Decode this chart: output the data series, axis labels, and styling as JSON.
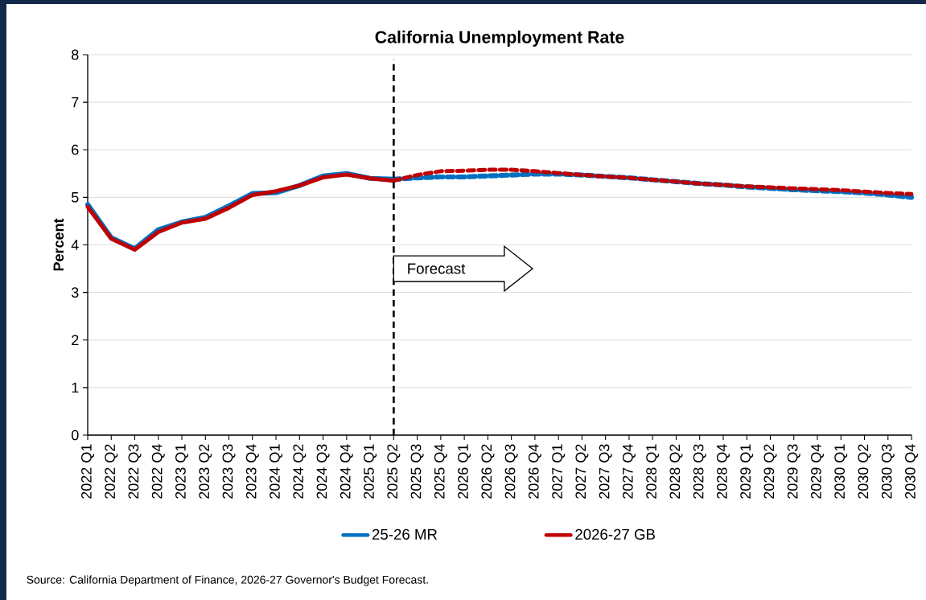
{
  "chart_data": {
    "type": "line",
    "title": "California Unemployment Rate",
    "ylabel": "Percent",
    "categories": [
      "2022 Q1",
      "2022 Q2",
      "2022 Q3",
      "2022 Q4",
      "2023 Q1",
      "2023 Q2",
      "2023 Q3",
      "2023 Q4",
      "2024 Q1",
      "2024 Q2",
      "2024 Q3",
      "2024 Q4",
      "2025 Q1",
      "2025 Q2",
      "2025 Q3",
      "2025 Q4",
      "2026 Q1",
      "2026 Q2",
      "2026 Q3",
      "2026 Q4",
      "2027 Q1",
      "2027 Q2",
      "2027 Q3",
      "2027 Q4",
      "2028 Q1",
      "2028 Q2",
      "2028 Q3",
      "2028 Q4",
      "2029 Q1",
      "2029 Q2",
      "2029 Q3",
      "2029 Q4",
      "2030 Q1",
      "2030 Q2",
      "2030 Q3",
      "2030 Q4"
    ],
    "series": [
      {
        "name": "25-26 MR",
        "color": "#0070c0",
        "line_style": "solid",
        "values": [
          4.85,
          4.15,
          3.92,
          4.32,
          4.48,
          4.58,
          4.82,
          5.08,
          5.1,
          5.25,
          5.45,
          5.5,
          5.4,
          5.38,
          null,
          null,
          null,
          null,
          null,
          null,
          null,
          null,
          null,
          null,
          null,
          null,
          null,
          null,
          null,
          null,
          null,
          null,
          null,
          null,
          null,
          null
        ]
      },
      {
        "color": "#0070c0",
        "line_style": "dashed",
        "values": [
          null,
          null,
          null,
          null,
          null,
          null,
          null,
          null,
          null,
          null,
          null,
          null,
          null,
          5.38,
          5.41,
          5.43,
          5.43,
          5.45,
          5.47,
          5.49,
          5.49,
          5.47,
          5.44,
          5.41,
          5.37,
          5.33,
          5.29,
          5.26,
          5.22,
          5.19,
          5.16,
          5.14,
          5.12,
          5.09,
          5.05,
          5.0
        ]
      },
      {
        "name": "2026-27 GB",
        "color": "#c00000",
        "line_style": "solid",
        "values": [
          4.8,
          4.13,
          3.9,
          4.27,
          4.47,
          4.55,
          4.78,
          5.05,
          5.13,
          5.25,
          5.42,
          5.48,
          5.4,
          5.35,
          null,
          null,
          null,
          null,
          null,
          null,
          null,
          null,
          null,
          null,
          null,
          null,
          null,
          null,
          null,
          null,
          null,
          null,
          null,
          null,
          null,
          null
        ]
      },
      {
        "color": "#c00000",
        "line_style": "dashed",
        "values": [
          null,
          null,
          null,
          null,
          null,
          null,
          null,
          null,
          null,
          null,
          null,
          null,
          null,
          5.35,
          5.47,
          5.55,
          5.56,
          5.58,
          5.58,
          5.55,
          5.51,
          5.47,
          5.44,
          5.41,
          5.37,
          5.33,
          5.29,
          5.26,
          5.23,
          5.21,
          5.19,
          5.17,
          5.15,
          5.12,
          5.09,
          5.07
        ]
      }
    ],
    "ylim": [
      0,
      8
    ],
    "yticks": [
      0,
      1,
      2,
      3,
      4,
      5,
      6,
      7,
      8
    ],
    "grid": "y",
    "legend": "bottom",
    "ref_lines": [
      {
        "axis": "x",
        "value": "2025 Q2",
        "color": "#000000",
        "line_style": "dashed"
      }
    ],
    "annotations": [
      {
        "text": "Forecast",
        "x": "2025 Q2",
        "y": 3.5
      },
      "Source: California Department of Finance, 2026-27 Governor's Budget Forecast."
    ]
  }
}
